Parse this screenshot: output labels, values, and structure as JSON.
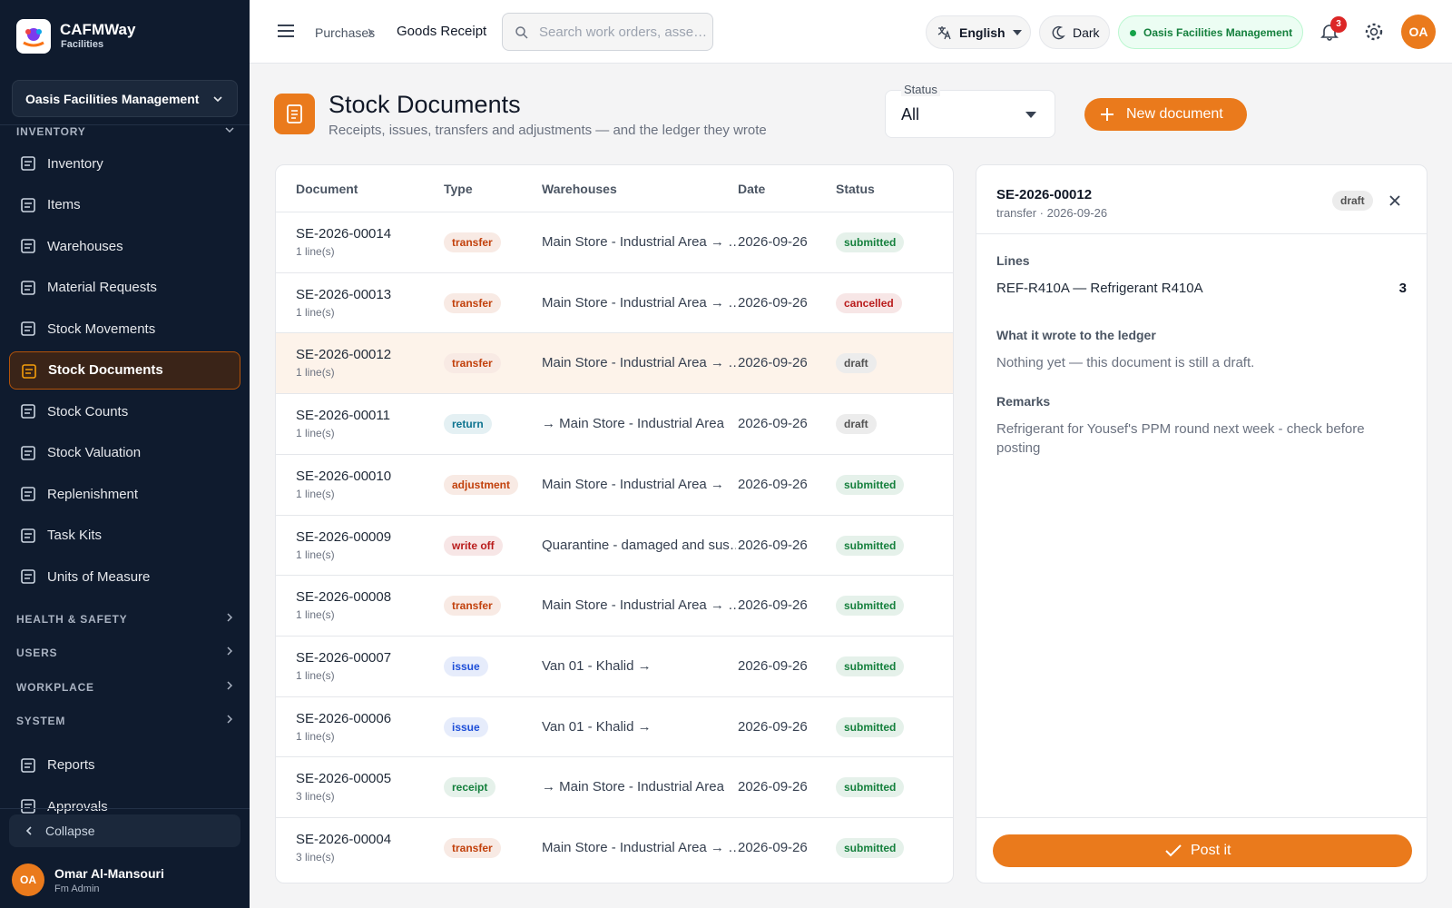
{
  "sidebar": {
    "brand": "CAFMWay",
    "brand_sub": "Facilities",
    "org": "Oasis Facilities Management",
    "sections": [
      {
        "title": "INVENTORY",
        "expanded": true,
        "items": [
          {
            "label": "Inventory"
          },
          {
            "label": "Items"
          },
          {
            "label": "Warehouses"
          },
          {
            "label": "Material Requests"
          },
          {
            "label": "Stock Movements"
          },
          {
            "label": "Stock Documents",
            "active": true
          },
          {
            "label": "Stock Counts"
          },
          {
            "label": "Stock Valuation"
          },
          {
            "label": "Replenishment"
          },
          {
            "label": "Task Kits"
          },
          {
            "label": "Units of Measure"
          }
        ]
      },
      {
        "title": "HEALTH & SAFETY"
      },
      {
        "title": "USERS"
      },
      {
        "title": "WORKPLACE"
      },
      {
        "title": "SYSTEM"
      }
    ],
    "footer_items": [
      {
        "label": "Reports"
      },
      {
        "label": "Approvals"
      }
    ],
    "collapse": "Collapse",
    "user": {
      "initials": "OA",
      "name": "Omar Al-Mansouri",
      "role": "Fm Admin"
    }
  },
  "topbar": {
    "breadcrumb": [
      "Purchases",
      "Goods Receipt"
    ],
    "search_placeholder": "Search work orders, asse…",
    "language": "English",
    "theme": "Dark",
    "org_badge": "Oasis Facilities Management",
    "notifications": 3,
    "avatar": "OA"
  },
  "header": {
    "title": "Stock Documents",
    "subtitle": "Receipts, issues, transfers and adjustments — and the ledger they wrote",
    "status_label": "Status",
    "status_value": "All",
    "new_button": "New document"
  },
  "table": {
    "columns": [
      "Document",
      "Type",
      "Warehouses",
      "Date",
      "Status"
    ],
    "selected_row": 2,
    "rows": [
      {
        "document": "SE-2026-00014",
        "lines": "1 line(s)",
        "type": "transfer",
        "type_color": "#c2410c",
        "warehouses": "Main Store - Industrial Area → …",
        "date": "2026-09-26",
        "status": "submitted",
        "status_color": "#15803d"
      },
      {
        "document": "SE-2026-00013",
        "lines": "1 line(s)",
        "type": "transfer",
        "type_color": "#c2410c",
        "warehouses": "Main Store - Industrial Area → …",
        "date": "2026-09-26",
        "status": "cancelled",
        "status_color": "#b91c1c"
      },
      {
        "document": "SE-2026-00012",
        "lines": "1 line(s)",
        "type": "transfer",
        "type_color": "#c2410c",
        "warehouses": "Main Store - Industrial Area → …",
        "date": "2026-09-26",
        "status": "draft",
        "status_color": "#525252"
      },
      {
        "document": "SE-2026-00011",
        "lines": "1 line(s)",
        "type": "return",
        "type_color": "#0e7490",
        "warehouses": "→ Main Store - Industrial Area",
        "date": "2026-09-26",
        "status": "draft",
        "status_color": "#525252"
      },
      {
        "document": "SE-2026-00010",
        "lines": "1 line(s)",
        "type": "adjustment",
        "type_color": "#c2410c",
        "warehouses": "Main Store - Industrial Area →",
        "date": "2026-09-26",
        "status": "submitted",
        "status_color": "#15803d"
      },
      {
        "document": "SE-2026-00009",
        "lines": "1 line(s)",
        "type": "write off",
        "type_color": "#b91c1c",
        "warehouses": "Quarantine - damaged and sus…",
        "date": "2026-09-26",
        "status": "submitted",
        "status_color": "#15803d"
      },
      {
        "document": "SE-2026-00008",
        "lines": "1 line(s)",
        "type": "transfer",
        "type_color": "#c2410c",
        "warehouses": "Main Store - Industrial Area → …",
        "date": "2026-09-26",
        "status": "submitted",
        "status_color": "#15803d"
      },
      {
        "document": "SE-2026-00007",
        "lines": "1 line(s)",
        "type": "issue",
        "type_color": "#1d4ed8",
        "warehouses": "Van 01 - Khalid →",
        "date": "2026-09-26",
        "status": "submitted",
        "status_color": "#15803d"
      },
      {
        "document": "SE-2026-00006",
        "lines": "1 line(s)",
        "type": "issue",
        "type_color": "#1d4ed8",
        "warehouses": "Van 01 - Khalid →",
        "date": "2026-09-26",
        "status": "submitted",
        "status_color": "#15803d"
      },
      {
        "document": "SE-2026-00005",
        "lines": "3 line(s)",
        "type": "receipt",
        "type_color": "#15803d",
        "warehouses": "→ Main Store - Industrial Area",
        "date": "2026-09-26",
        "status": "submitted",
        "status_color": "#15803d"
      },
      {
        "document": "SE-2026-00004",
        "lines": "3 line(s)",
        "type": "transfer",
        "type_color": "#c2410c",
        "warehouses": "Main Store - Industrial Area → …",
        "date": "2026-09-26",
        "status": "submitted",
        "status_color": "#15803d"
      }
    ]
  },
  "detail": {
    "document": "SE-2026-00012",
    "meta": "transfer · 2026-09-26",
    "status": "draft",
    "lines_heading": "Lines",
    "line_item": "REF-R410A — Refrigerant R410A",
    "line_qty": 3,
    "ledger_heading": "What it wrote to the ledger",
    "ledger_text": "Nothing yet — this document is still a draft.",
    "remarks_heading": "Remarks",
    "remarks_text": "Refrigerant for Yousef's PPM round next week - check before posting",
    "post_button": "Post it"
  }
}
